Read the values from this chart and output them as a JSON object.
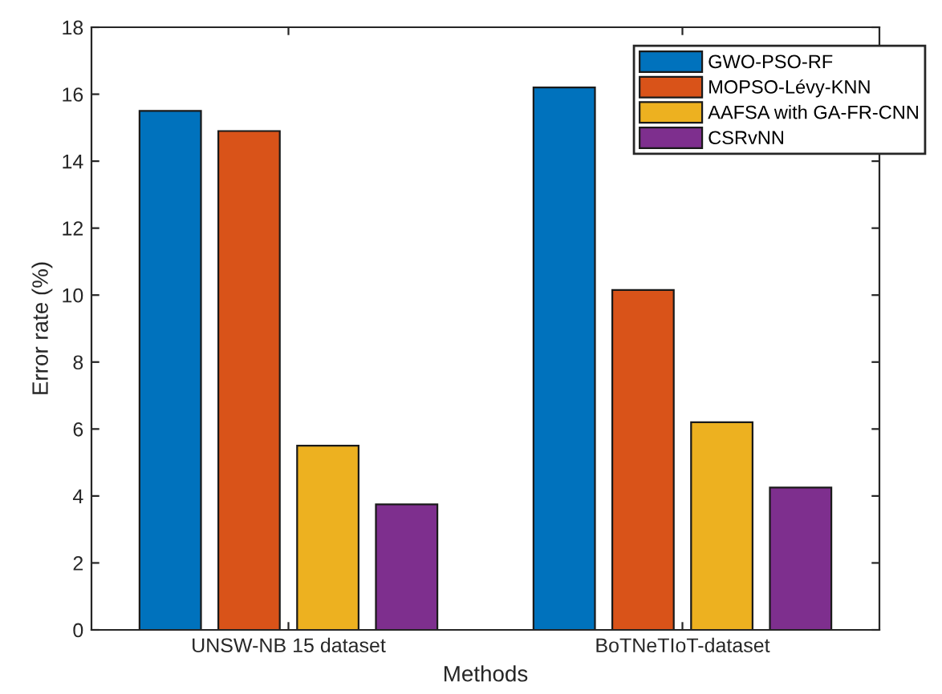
{
  "chart_data": {
    "type": "bar",
    "xlabel": "Methods",
    "ylabel": "Error rate (%)",
    "categories": [
      "UNSW-NB 15 dataset",
      "BoTNeTIoT-dataset"
    ],
    "series": [
      {
        "name": "GWO-PSO-RF",
        "color": "#0072bd",
        "values": [
          15.5,
          16.2
        ]
      },
      {
        "name": "MOPSO-Lévy-KNN",
        "color": "#d95319",
        "values": [
          14.9,
          10.15
        ]
      },
      {
        "name": "AAFSA with GA-FR-CNN",
        "color": "#edb120",
        "values": [
          5.5,
          6.2
        ]
      },
      {
        "name": "CSRvNN",
        "color": "#7e2f8e",
        "values": [
          3.75,
          4.25
        ]
      }
    ],
    "ylim": [
      0,
      18
    ],
    "yticks": [
      0,
      2,
      4,
      6,
      8,
      10,
      12,
      14,
      16,
      18
    ],
    "grid": false,
    "legend": "top right"
  }
}
